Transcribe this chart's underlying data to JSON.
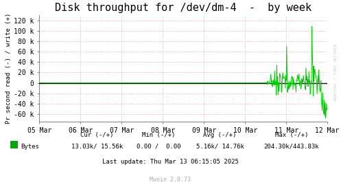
{
  "title": "Disk throughput for /dev/dm-4  -  by week",
  "ylabel": "Pr second read (-) / write (+)",
  "background_color": "#ffffff",
  "plot_bg_color": "#ffffff",
  "grid_color": "#ff9999",
  "yticks": [
    -60000,
    -40000,
    -20000,
    0,
    20000,
    40000,
    60000,
    80000,
    100000,
    120000
  ],
  "ytick_labels": [
    "-60 k",
    "-40 k",
    "-20 k",
    "0",
    "20 k",
    "40 k",
    "60 k",
    "80 k",
    "100 k",
    "120 k"
  ],
  "ylim": [
    -75000,
    130000
  ],
  "xlim": [
    0,
    672
  ],
  "xtick_positions": [
    0,
    96,
    192,
    288,
    384,
    480,
    576,
    672
  ],
  "xtick_labels": [
    "05 Mar",
    "06 Mar",
    "07 Mar",
    "08 Mar",
    "09 Mar",
    "10 Mar",
    "11 Mar",
    "12 Mar"
  ],
  "line_color": "#00cc00",
  "zero_line_color": "#000000",
  "legend_label": "Bytes",
  "legend_color": "#00aa00",
  "cur_label": "Cur (-/+)",
  "cur_val": "13.03k/ 15.56k",
  "min_label": "Min (-/+)",
  "min_val": "0.00 /  0.00",
  "avg_label": "Avg (-/+)",
  "avg_val": "5.16k/ 14.76k",
  "max_label": "Max (-/+)",
  "max_val": "204.30k/443.83k",
  "last_update": "Last update: Thu Mar 13 06:15:05 2025",
  "munin_version": "Munin 2.0.73",
  "rrdtool_text": "RRDTOOL / TOBI OETIKER",
  "tick_fontsize": 7,
  "ylabel_fontsize": 6.5,
  "title_fontsize": 11
}
